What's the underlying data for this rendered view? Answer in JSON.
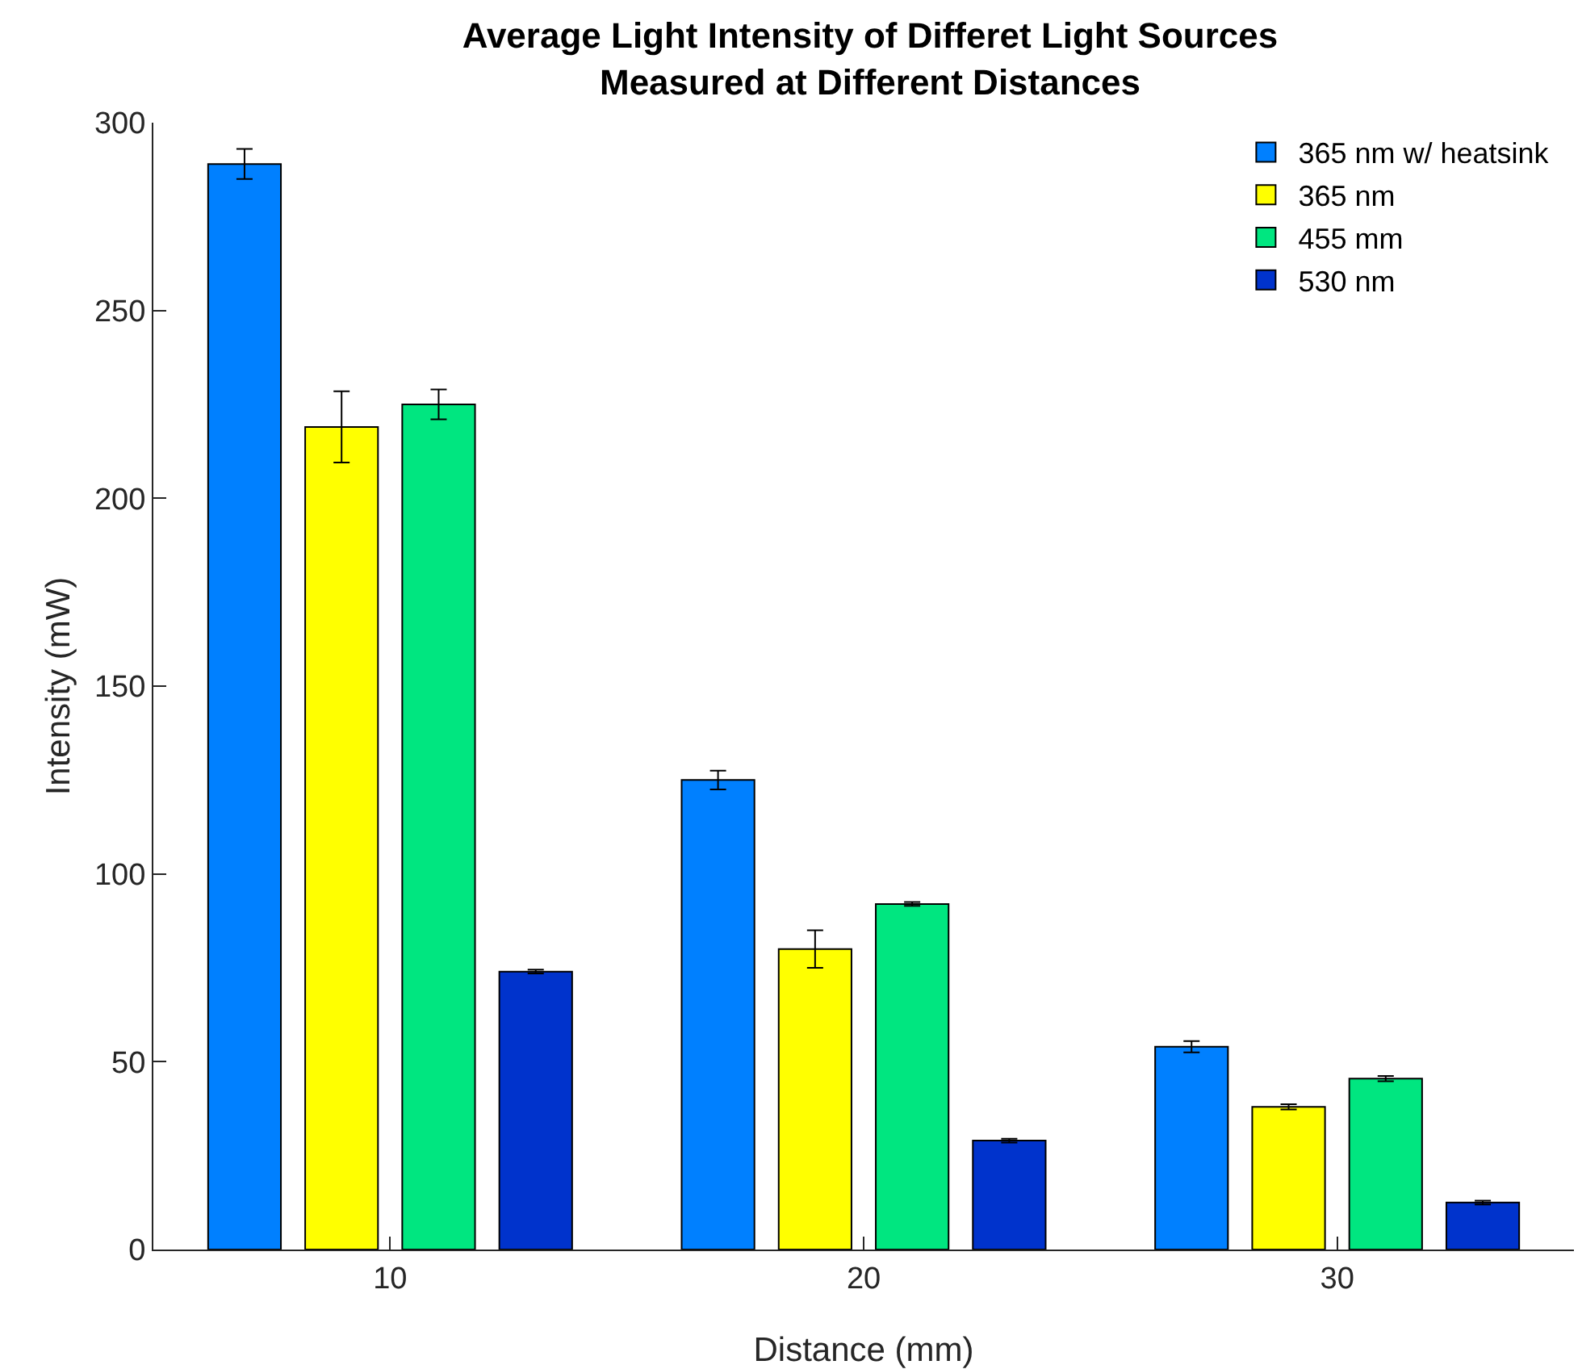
{
  "chart_data": {
    "type": "bar",
    "title": "Average Light Intensity of Differet Light Sources\nMeasured at Different Distances",
    "xlabel": "Distance (mm)",
    "ylabel": "Intensity (mW)",
    "categories": [
      "10",
      "20",
      "30"
    ],
    "series": [
      {
        "name": "365 nm w/ heatsink",
        "color": "#0080ff",
        "values": [
          289,
          125,
          54
        ],
        "errors": [
          4,
          2.5,
          1.5
        ]
      },
      {
        "name": "365 nm",
        "color": "#ffff00",
        "values": [
          219,
          80,
          38
        ],
        "errors": [
          9.5,
          5,
          0.7
        ]
      },
      {
        "name": "455 mm",
        "color": "#00e680",
        "values": [
          225,
          92,
          45.5
        ],
        "errors": [
          4,
          0.5,
          0.7
        ]
      },
      {
        "name": "530 nm",
        "color": "#0033cc",
        "values": [
          74,
          29,
          12.5
        ],
        "errors": [
          0.5,
          0.5,
          0.5
        ]
      }
    ],
    "ylim": [
      0,
      300
    ],
    "yticks": [
      0,
      50,
      100,
      150,
      200,
      250,
      300
    ],
    "grid": false,
    "legend": "top right"
  }
}
